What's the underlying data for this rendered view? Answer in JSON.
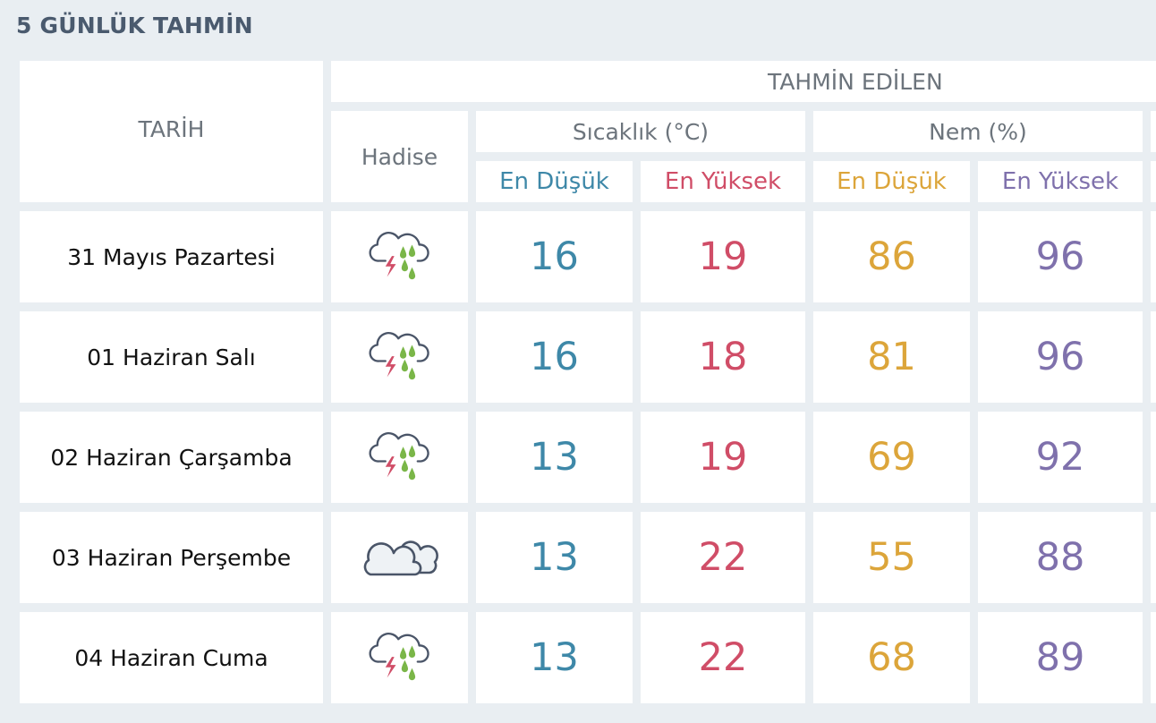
{
  "title": "5 GÜNLÜK TAHMİN",
  "headers": {
    "date": "TARİH",
    "event": "Hadise",
    "forecast": "TAHMİN EDİLEN",
    "temperature": "Sıcaklık (°C)",
    "humidity": "Nem (%)",
    "temp_min": "En Düşük",
    "temp_max": "En Yüksek",
    "hum_min": "En Düşük",
    "hum_max": "En Yüksek"
  },
  "colors": {
    "temp_min": "#3e88a8",
    "temp_max": "#d04d67",
    "hum_min": "#dca53a",
    "hum_max": "#7f71ac"
  },
  "rows": [
    {
      "date": "31 Mayıs Pazartesi",
      "icon": "thunderstorm-rain-icon",
      "temp_min": "16",
      "temp_max": "19",
      "hum_min": "86",
      "hum_max": "96"
    },
    {
      "date": "01 Haziran Salı",
      "icon": "thunderstorm-rain-icon",
      "temp_min": "16",
      "temp_max": "18",
      "hum_min": "81",
      "hum_max": "96"
    },
    {
      "date": "02 Haziran Çarşamba",
      "icon": "thunderstorm-rain-icon",
      "temp_min": "13",
      "temp_max": "19",
      "hum_min": "69",
      "hum_max": "92"
    },
    {
      "date": "03 Haziran Perşembe",
      "icon": "cloudy-icon",
      "temp_min": "13",
      "temp_max": "22",
      "hum_min": "55",
      "hum_max": "88"
    },
    {
      "date": "04 Haziran Cuma",
      "icon": "thunderstorm-rain-icon",
      "temp_min": "13",
      "temp_max": "22",
      "hum_min": "68",
      "hum_max": "89"
    }
  ]
}
